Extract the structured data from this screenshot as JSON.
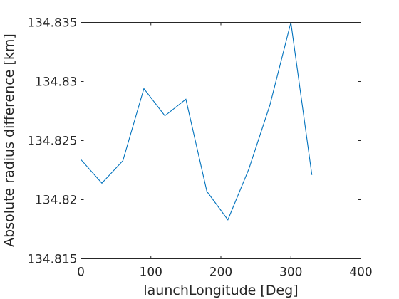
{
  "chart_data": {
    "type": "line",
    "title": "",
    "xlabel": "launchLongitude [Deg]",
    "ylabel": "Absolute radius difference [km]",
    "xlim": [
      0,
      400
    ],
    "ylim": [
      134.815,
      134.835
    ],
    "xticks": [
      0,
      100,
      200,
      300,
      400
    ],
    "xtick_labels": [
      "0",
      "100",
      "200",
      "300",
      "400"
    ],
    "yticks": [
      134.815,
      134.82,
      134.825,
      134.83,
      134.835
    ],
    "ytick_labels": [
      "134.815",
      "134.82",
      "134.825",
      "134.83",
      "134.835"
    ],
    "grid": false,
    "legend": "none",
    "series": [
      {
        "color": "#0072BD",
        "x": [
          0,
          30,
          60,
          90,
          120,
          150,
          180,
          210,
          240,
          270,
          300,
          330
        ],
        "y": [
          134.8234,
          134.8214,
          134.8233,
          134.8294,
          134.8271,
          134.8285,
          134.8207,
          134.8183,
          134.8226,
          134.828,
          134.835,
          134.8221
        ]
      }
    ]
  }
}
